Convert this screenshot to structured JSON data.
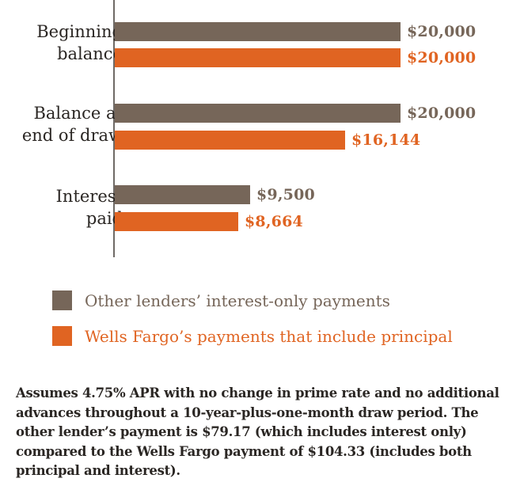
{
  "chart_data": {
    "type": "bar",
    "orientation": "horizontal",
    "title": "",
    "xlabel": "",
    "ylabel": "",
    "xlim": [
      0,
      20000
    ],
    "grid": false,
    "legend_position": "bottom",
    "categories": [
      "Beginning\nbalance",
      "Balance at\nend of draw",
      "Interest\npaid"
    ],
    "series": [
      {
        "name": "Other lenders’ interest-only payments",
        "color": "#766659",
        "values": [
          20000,
          20000,
          9500
        ],
        "labels": [
          "$20,000",
          "$20,000",
          "$9,500"
        ]
      },
      {
        "name": "Wells Fargo’s payments that include principal",
        "color": "#e06422",
        "values": [
          20000,
          16144,
          8664
        ],
        "labels": [
          "$20,000",
          "$16,144",
          "$8,664"
        ]
      }
    ]
  },
  "colors": {
    "other": "#766659",
    "wells_fargo": "#e06422"
  },
  "footnote": "Assumes 4.75% APR with no change in prime rate and no additional advances throughout a 10-year-plus-one-month draw period. The other lender’s payment is $79.17 (which includes interest only) compared to the Wells Fargo payment of $104.33 (includes both principal and interest)."
}
